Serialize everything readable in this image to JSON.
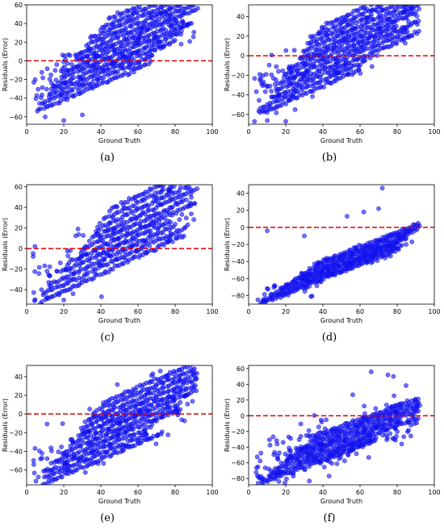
{
  "figure": {
    "charts": [
      {
        "caption": "(a)",
        "xlabel": "Ground Truth",
        "ylabel": "Residuals (Error)",
        "xlim": [
          0,
          100
        ],
        "ylim": [
          -68,
          60
        ],
        "xticks": [
          "0",
          "20",
          "40",
          "60",
          "80",
          "100"
        ],
        "yticks": [
          {
            "v": -60,
            "t": "−60"
          },
          {
            "v": -40,
            "t": "−40"
          },
          {
            "v": -20,
            "t": "−20"
          },
          {
            "v": 0,
            "t": "0"
          },
          {
            "v": 20,
            "t": "20"
          },
          {
            "v": 40,
            "t": "40"
          },
          {
            "v": 60,
            "t": "60"
          }
        ],
        "bands": 12,
        "band_start": -56,
        "band_step": 6,
        "spread": 34,
        "scatter_points": 140,
        "scatter_sd": 15,
        "outliers": [
          [
            77,
            56
          ],
          [
            70,
            47
          ],
          [
            45,
            33
          ],
          [
            10,
            -60
          ],
          [
            20,
            -64
          ],
          [
            30,
            -58
          ]
        ]
      },
      {
        "caption": "(b)",
        "xlabel": "Ground Truth",
        "ylabel": "Residuals (Error)",
        "xlim": [
          0,
          100
        ],
        "ylim": [
          -70,
          52
        ],
        "xticks": [
          "0",
          "20",
          "40",
          "60",
          "80",
          "100"
        ],
        "yticks": [
          {
            "v": -60,
            "t": "−60"
          },
          {
            "v": -40,
            "t": "−40"
          },
          {
            "v": -20,
            "t": "−20"
          },
          {
            "v": 0,
            "t": "0"
          },
          {
            "v": 20,
            "t": "20"
          },
          {
            "v": 40,
            "t": "40"
          }
        ],
        "bands": 12,
        "band_start": -62,
        "band_step": 5.5,
        "spread": 30,
        "scatter_points": 140,
        "scatter_sd": 15,
        "outliers": [
          [
            72,
            47
          ],
          [
            75,
            37
          ],
          [
            50,
            34
          ],
          [
            10,
            -58
          ],
          [
            20,
            -67
          ],
          [
            25,
            -55
          ]
        ]
      },
      {
        "caption": "(c)",
        "xlabel": "Ground Truth",
        "ylabel": "Residuals (Error)",
        "xlim": [
          0,
          100
        ],
        "ylim": [
          -54,
          62
        ],
        "xticks": [
          "0",
          "20",
          "40",
          "60",
          "80",
          "100"
        ],
        "yticks": [
          {
            "v": -40,
            "t": "−40"
          },
          {
            "v": -20,
            "t": "−20"
          },
          {
            "v": 0,
            "t": "0"
          },
          {
            "v": 20,
            "t": "20"
          },
          {
            "v": 40,
            "t": "40"
          },
          {
            "v": 60,
            "t": "60"
          }
        ],
        "bands": 10,
        "band_start": -56,
        "band_step": 6.5,
        "spread": 38,
        "scatter_points": 110,
        "scatter_sd": 14,
        "outliers": [
          [
            77,
            56
          ],
          [
            70,
            49
          ],
          [
            20,
            -50
          ],
          [
            25,
            -44
          ],
          [
            8,
            -40
          ]
        ]
      },
      {
        "caption": "(d)",
        "xlabel": "Ground Truth",
        "ylabel": "Residuals (Error)",
        "xlim": [
          0,
          100
        ],
        "ylim": [
          -90,
          50
        ],
        "xticks": [
          "0",
          "20",
          "40",
          "60",
          "80",
          "100"
        ],
        "yticks": [
          {
            "v": -80,
            "t": "−80"
          },
          {
            "v": -60,
            "t": "−60"
          },
          {
            "v": -40,
            "t": "−40"
          },
          {
            "v": -20,
            "t": "−20"
          },
          {
            "v": 0,
            "t": "0"
          },
          {
            "v": 20,
            "t": "20"
          },
          {
            "v": 40,
            "t": "40"
          }
        ],
        "bands": 8,
        "band_start": -92,
        "band_step": 3,
        "spread": 30,
        "scatter_points": 70,
        "scatter_sd": 8,
        "outliers": [
          [
            72,
            46
          ],
          [
            70,
            22
          ],
          [
            62,
            18
          ],
          [
            53,
            13
          ],
          [
            5,
            -85
          ],
          [
            10,
            -4
          ],
          [
            30,
            -10
          ]
        ]
      },
      {
        "caption": "(e)",
        "xlabel": "Ground Truth",
        "ylabel": "Residuals (Error)",
        "xlim": [
          0,
          100
        ],
        "ylim": [
          -76,
          52
        ],
        "xticks": [
          "0",
          "20",
          "40",
          "60",
          "80",
          "100"
        ],
        "yticks": [
          {
            "v": -60,
            "t": "−60"
          },
          {
            "v": -40,
            "t": "−40"
          },
          {
            "v": -20,
            "t": "−20"
          },
          {
            "v": 0,
            "t": "0"
          },
          {
            "v": 20,
            "t": "20"
          },
          {
            "v": 40,
            "t": "40"
          }
        ],
        "bands": 11,
        "band_start": -80,
        "band_step": 6,
        "spread": 32,
        "scatter_points": 150,
        "scatter_sd": 17,
        "outliers": [
          [
            72,
            46
          ],
          [
            68,
            43
          ],
          [
            5,
            -72
          ],
          [
            15,
            -70
          ],
          [
            22,
            -60
          ]
        ]
      },
      {
        "caption": "(f)",
        "xlabel": "Ground Truth",
        "ylabel": "Residuals (Error)",
        "xlim": [
          0,
          100
        ],
        "ylim": [
          -88,
          64
        ],
        "xticks": [
          "0",
          "20",
          "40",
          "60",
          "80",
          "100"
        ],
        "yticks": [
          {
            "v": -80,
            "t": "−80"
          },
          {
            "v": -60,
            "t": "−60"
          },
          {
            "v": -40,
            "t": "−40"
          },
          {
            "v": -20,
            "t": "−20"
          },
          {
            "v": 0,
            "t": "0"
          },
          {
            "v": 20,
            "t": "20"
          },
          {
            "v": 40,
            "t": "40"
          },
          {
            "v": 60,
            "t": "60"
          }
        ],
        "bands": 8,
        "band_start": -88,
        "band_step": 5,
        "spread": 30,
        "scatter_points": 230,
        "scatter_sd": 20,
        "outliers": [
          [
            66,
            56
          ],
          [
            75,
            52
          ],
          [
            78,
            50
          ],
          [
            8,
            -80
          ],
          [
            12,
            -70
          ],
          [
            5,
            -65
          ]
        ]
      }
    ],
    "colors": {
      "points": "#1010ee",
      "zero_line": "#dd0000",
      "axes": "#000000"
    }
  },
  "chart_data": [
    {
      "type": "scatter",
      "title": "(a)",
      "xlabel": "Ground Truth",
      "ylabel": "Residuals (Error)",
      "xlim": [
        0,
        100
      ],
      "ylim": [
        -68,
        60
      ],
      "reference_line": {
        "y": 0,
        "style": "dashed red"
      },
      "point_range": {
        "x": [
          3,
          90
        ],
        "y": [
          -65,
          56
        ]
      }
    },
    {
      "type": "scatter",
      "title": "(b)",
      "xlabel": "Ground Truth",
      "ylabel": "Residuals (Error)",
      "xlim": [
        0,
        100
      ],
      "ylim": [
        -70,
        52
      ],
      "reference_line": {
        "y": 0,
        "style": "dashed red"
      },
      "point_range": {
        "x": [
          3,
          92
        ],
        "y": [
          -67,
          47
        ]
      }
    },
    {
      "type": "scatter",
      "title": "(c)",
      "xlabel": "Ground Truth",
      "ylabel": "Residuals (Error)",
      "xlim": [
        0,
        100
      ],
      "ylim": [
        -54,
        62
      ],
      "reference_line": {
        "y": 0,
        "style": "dashed red"
      },
      "point_range": {
        "x": [
          3,
          90
        ],
        "y": [
          -50,
          56
        ]
      }
    },
    {
      "type": "scatter",
      "title": "(d)",
      "xlabel": "Ground Truth",
      "ylabel": "Residuals (Error)",
      "xlim": [
        0,
        100
      ],
      "ylim": [
        -90,
        50
      ],
      "reference_line": {
        "y": 0,
        "style": "dashed red"
      },
      "point_range": {
        "x": [
          3,
          92
        ],
        "y": [
          -85,
          46
        ]
      }
    },
    {
      "type": "scatter",
      "title": "(e)",
      "xlabel": "Ground Truth",
      "ylabel": "Residuals (Error)",
      "xlim": [
        0,
        100
      ],
      "ylim": [
        -76,
        52
      ],
      "reference_line": {
        "y": 0,
        "style": "dashed red"
      },
      "point_range": {
        "x": [
          3,
          92
        ],
        "y": [
          -72,
          46
        ]
      }
    },
    {
      "type": "scatter",
      "title": "(f)",
      "xlabel": "Ground Truth",
      "ylabel": "Residuals (Error)",
      "xlim": [
        0,
        100
      ],
      "ylim": [
        -88,
        64
      ],
      "reference_line": {
        "y": 0,
        "style": "dashed red"
      },
      "point_range": {
        "x": [
          3,
          92
        ],
        "y": [
          -82,
          56
        ]
      }
    }
  ]
}
